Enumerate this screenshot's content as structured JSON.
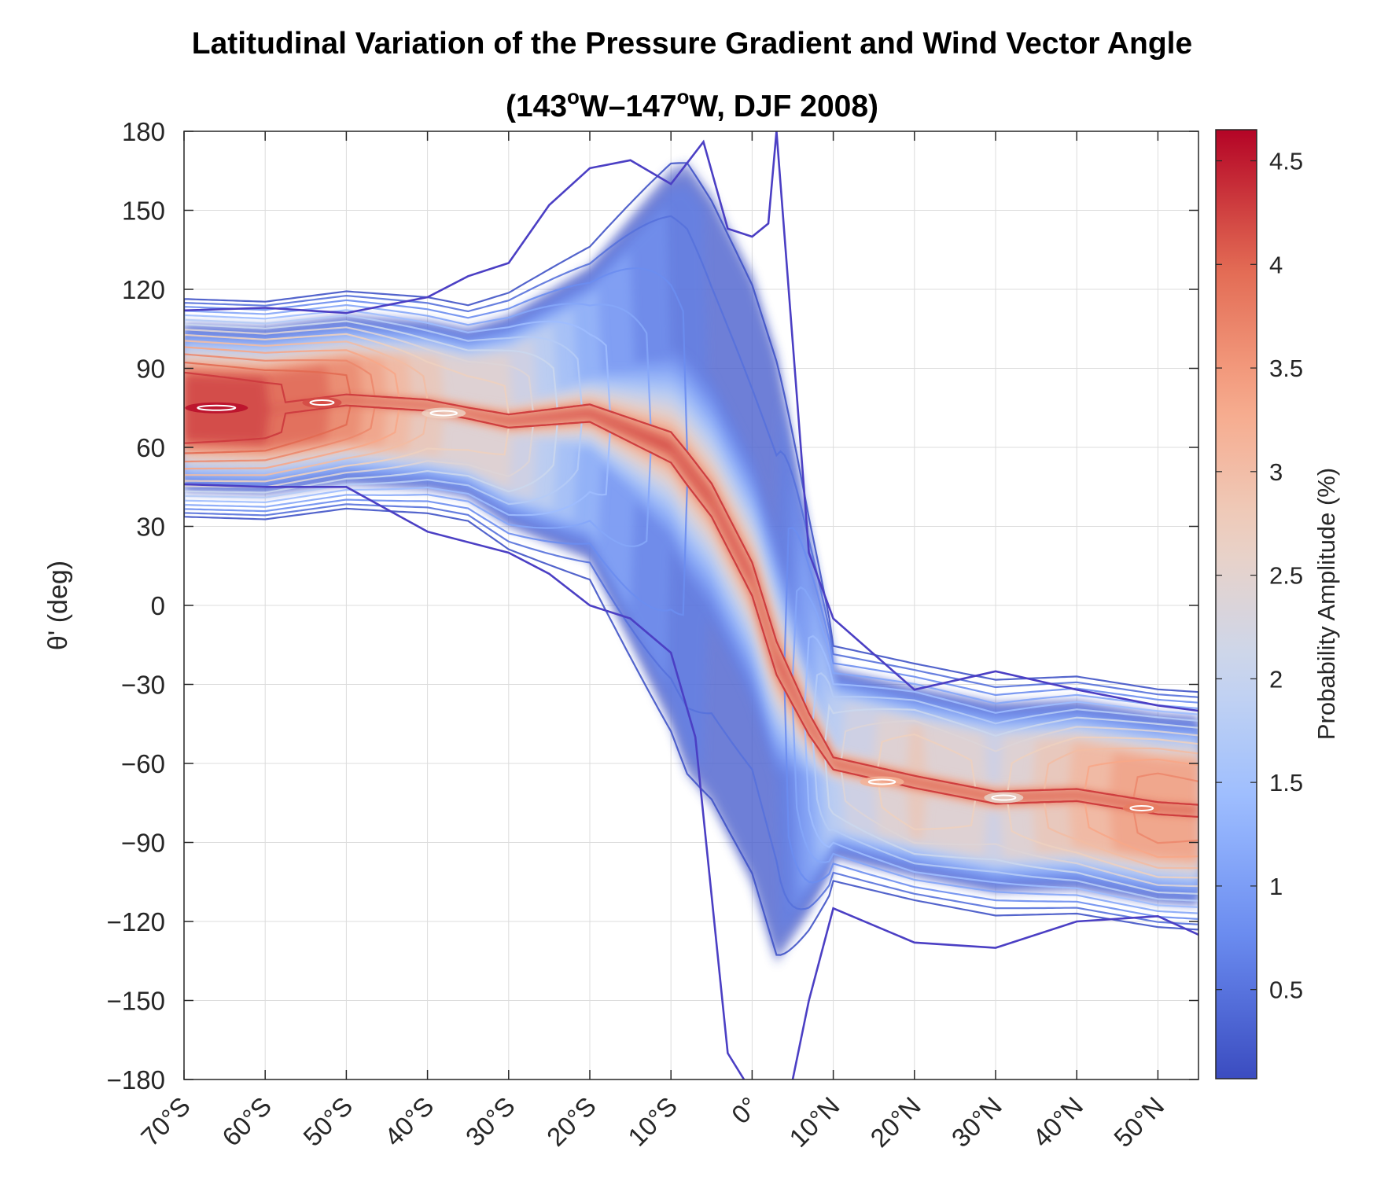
{
  "chart_data": {
    "type": "contour",
    "title_line1": "Latitudinal Variation of the Pressure Gradient and Wind Vector Angle",
    "title_line2_parts": [
      "(143",
      "o",
      "W–147",
      "o",
      "W,  DJF 2008)"
    ],
    "xlabel": "",
    "ylabel": "θ' (deg)",
    "x_ticks": [
      -70,
      -60,
      -50,
      -40,
      -30,
      -20,
      -10,
      0,
      10,
      20,
      30,
      40,
      50
    ],
    "x_tick_labels": [
      "70°S",
      "60°S",
      "50°S",
      "40°S",
      "30°S",
      "20°S",
      "10°S",
      "0°",
      "10°N",
      "20°N",
      "30°N",
      "40°N",
      "50°N"
    ],
    "xlim": [
      -70,
      55
    ],
    "ylim": [
      -180,
      180
    ],
    "y_ticks": [
      180,
      150,
      120,
      90,
      60,
      30,
      0,
      -30,
      -60,
      -90,
      -120,
      -150,
      -180
    ],
    "y_tick_labels": [
      "180",
      "150",
      "120",
      "90",
      "60",
      "30",
      "0",
      "−30",
      "−60",
      "−90",
      "−120",
      "−150",
      "−180"
    ],
    "grid": true,
    "colorbar": {
      "label": "Probability Amplitude (%)",
      "range": [
        0.07,
        4.65
      ],
      "ticks": [
        4.5,
        4,
        3.5,
        3,
        2.5,
        2,
        1.5,
        1,
        0.5
      ],
      "tick_labels": [
        "4.5",
        "4",
        "3.5",
        "3",
        "2.5",
        "2",
        "1.5",
        "1",
        "0.5"
      ],
      "colormap": [
        "#3b4cc0",
        "#6788ee",
        "#9abbff",
        "#c9d7f0",
        "#edd1c2",
        "#f7a889",
        "#e26952",
        "#b40426"
      ]
    },
    "ridge_line": [
      [
        -70,
        75
      ],
      [
        -60,
        74
      ],
      [
        -50,
        78
      ],
      [
        -40,
        76
      ],
      [
        -30,
        70
      ],
      [
        -20,
        73
      ],
      [
        -10,
        60
      ],
      [
        -5,
        40
      ],
      [
        0,
        10
      ],
      [
        3,
        -20
      ],
      [
        7,
        -45
      ],
      [
        10,
        -60
      ],
      [
        20,
        -67
      ],
      [
        30,
        -73
      ],
      [
        40,
        -72
      ],
      [
        50,
        -77
      ],
      [
        55,
        -78
      ]
    ],
    "ridge_amplitude": [
      [
        -70,
        4.6
      ],
      [
        -60,
        4.4
      ],
      [
        -50,
        4.0
      ],
      [
        -40,
        3.0
      ],
      [
        -30,
        2.7
      ],
      [
        -20,
        1.6
      ],
      [
        -10,
        0.9
      ],
      [
        -5,
        0.6
      ],
      [
        0,
        0.5
      ],
      [
        3,
        0.55
      ],
      [
        7,
        1.5
      ],
      [
        10,
        2.3
      ],
      [
        20,
        3.0
      ],
      [
        30,
        2.6
      ],
      [
        40,
        3.3
      ],
      [
        50,
        3.8
      ],
      [
        55,
        3.7
      ]
    ],
    "outer_contour_upper": [
      [
        -70,
        112
      ],
      [
        -60,
        113
      ],
      [
        -50,
        111
      ],
      [
        -40,
        117
      ],
      [
        -35,
        125
      ],
      [
        -30,
        130
      ],
      [
        -25,
        152
      ],
      [
        -20,
        166
      ],
      [
        -15,
        169
      ],
      [
        -10,
        160
      ],
      [
        -6,
        176
      ],
      [
        -3,
        143
      ],
      [
        0,
        140
      ],
      [
        2,
        145
      ],
      [
        3,
        180
      ]
    ],
    "outer_contour_lower": [
      [
        -70,
        46
      ],
      [
        -60,
        45
      ],
      [
        -50,
        45
      ],
      [
        -40,
        28
      ],
      [
        -30,
        20
      ],
      [
        -25,
        12
      ],
      [
        -20,
        0
      ],
      [
        -15,
        -5
      ],
      [
        -10,
        -18
      ],
      [
        -7,
        -50
      ],
      [
        -5,
        -110
      ],
      [
        -3,
        -170
      ],
      [
        -1,
        -180
      ]
    ],
    "outer_contour_east_upper": [
      [
        3,
        180
      ],
      [
        5,
        100
      ],
      [
        7,
        20
      ],
      [
        10,
        -5
      ],
      [
        20,
        -32
      ],
      [
        30,
        -25
      ],
      [
        40,
        -32
      ],
      [
        50,
        -38
      ],
      [
        55,
        -40
      ]
    ],
    "outer_contour_east_lower": [
      [
        5,
        -180
      ],
      [
        7,
        -150
      ],
      [
        10,
        -115
      ],
      [
        20,
        -128
      ],
      [
        30,
        -130
      ],
      [
        40,
        -120
      ],
      [
        50,
        -118
      ],
      [
        55,
        -125
      ]
    ]
  }
}
